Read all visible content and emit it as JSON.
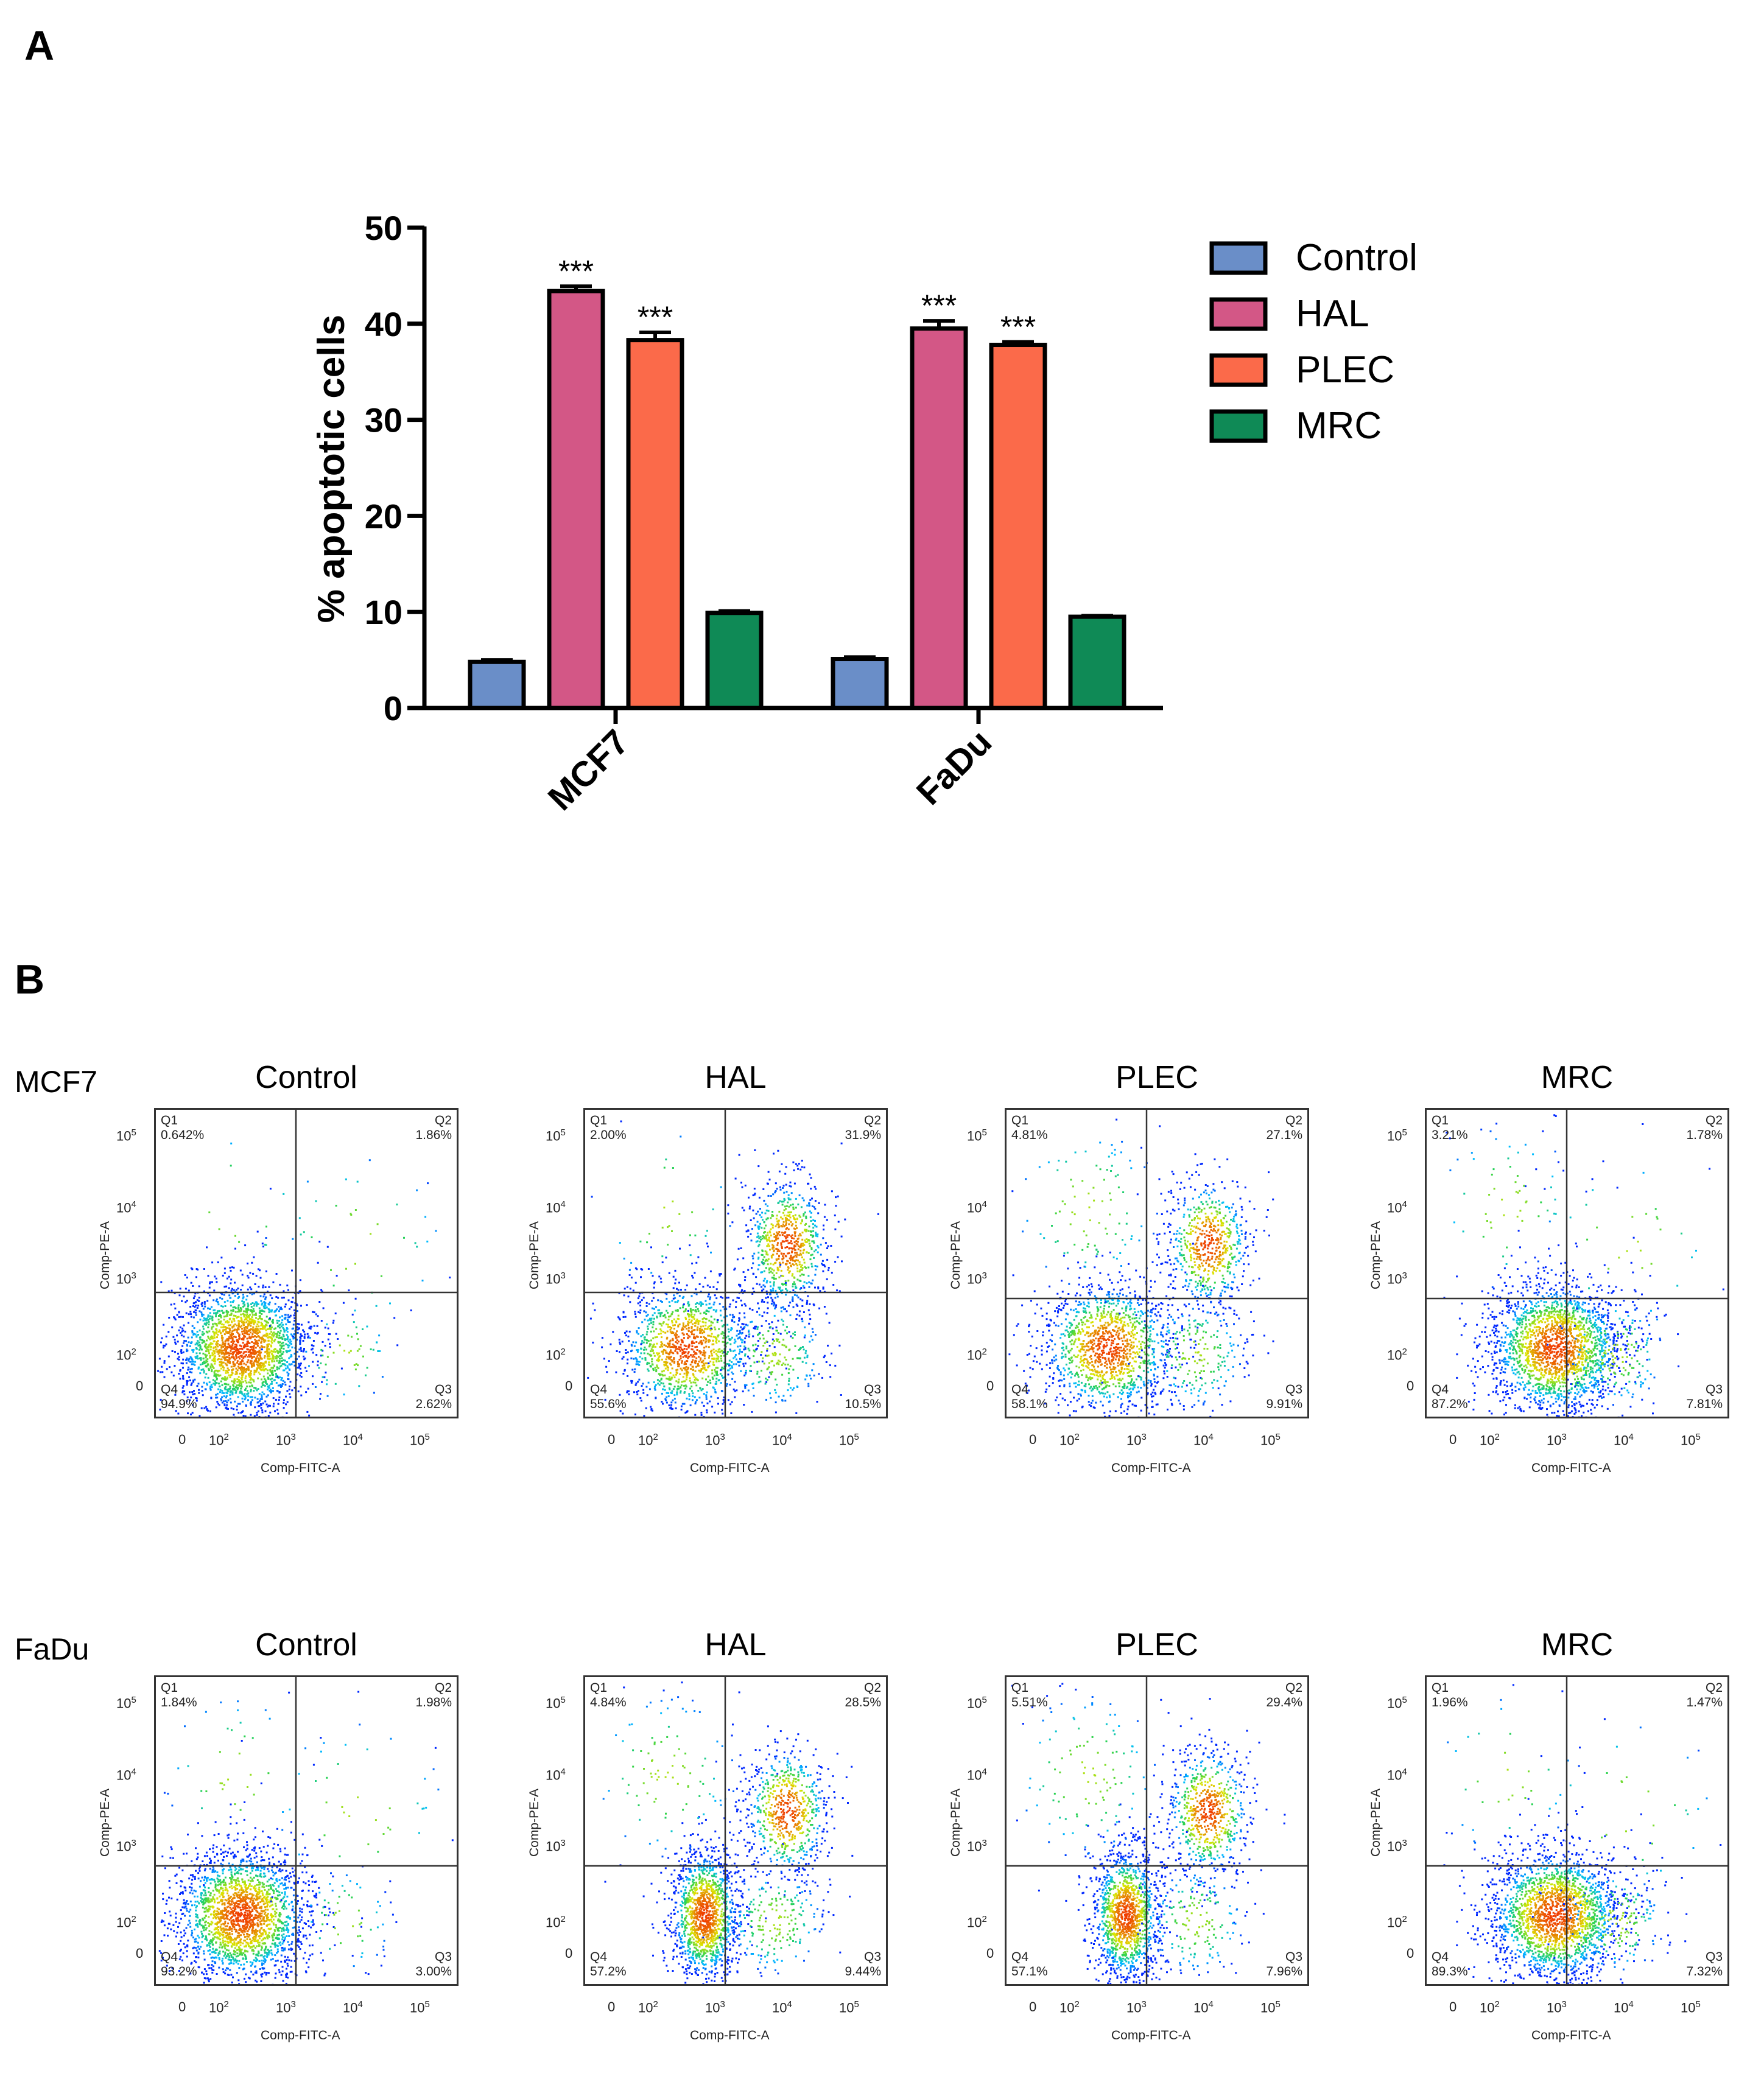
{
  "panel_a_label": "A",
  "panel_b_label": "B",
  "chart_data": {
    "type": "bar",
    "title": "",
    "xlabel": "",
    "ylabel": "% apoptotic cells",
    "ylim": [
      0,
      50
    ],
    "yticks": [
      "0",
      "10",
      "20",
      "30",
      "40",
      "50"
    ],
    "categories": [
      "MCF7",
      "FaDu"
    ],
    "series": [
      {
        "name": "Control",
        "color": "#6a8ec8",
        "values": [
          4.8,
          5.1
        ],
        "errors": [
          0.2,
          0.2
        ],
        "annotations": [
          "",
          ""
        ]
      },
      {
        "name": "HAL",
        "color": "#d35786",
        "values": [
          43.4,
          39.5
        ],
        "errors": [
          0.5,
          0.8
        ],
        "annotations": [
          "***",
          "***"
        ]
      },
      {
        "name": "PLEC",
        "color": "#fb6a4a",
        "values": [
          38.3,
          37.8
        ],
        "errors": [
          0.8,
          0.3
        ],
        "annotations": [
          "***",
          "***"
        ]
      },
      {
        "name": "MRC",
        "color": "#0f8a56",
        "values": [
          9.9,
          9.5
        ],
        "errors": [
          0.2,
          0.1
        ],
        "annotations": [
          "",
          ""
        ]
      }
    ],
    "legend_position": "right"
  },
  "flow": {
    "xlabel": "Comp-FITC-A",
    "ylabel": "Comp-PE-A",
    "tick_zero": "0",
    "tick_base": "10",
    "tick_exps": [
      "2",
      "3",
      "4",
      "5"
    ],
    "quadrant_names": [
      "Q1",
      "Q2",
      "Q3",
      "Q4"
    ],
    "rows": [
      {
        "label": "MCF7",
        "plots": [
          {
            "title": "Control",
            "q1": "0.642%",
            "q2": "1.86%",
            "q3": "2.62%",
            "q4": "94.9%"
          },
          {
            "title": "HAL",
            "q1": "2.00%",
            "q2": "31.9%",
            "q3": "10.5%",
            "q4": "55.6%"
          },
          {
            "title": "PLEC",
            "q1": "4.81%",
            "q2": "27.1%",
            "q3": "9.91%",
            "q4": "58.1%"
          },
          {
            "title": "MRC",
            "q1": "3.21%",
            "q2": "1.78%",
            "q3": "7.81%",
            "q4": "87.2%"
          }
        ]
      },
      {
        "label": "FaDu",
        "plots": [
          {
            "title": "Control",
            "q1": "1.84%",
            "q2": "1.98%",
            "q3": "3.00%",
            "q4": "93.2%"
          },
          {
            "title": "HAL",
            "q1": "4.84%",
            "q2": "28.5%",
            "q3": "9.44%",
            "q4": "57.2%"
          },
          {
            "title": "PLEC",
            "q1": "5.51%",
            "q2": "29.4%",
            "q3": "7.96%",
            "q4": "57.1%"
          },
          {
            "title": "MRC",
            "q1": "1.96%",
            "q2": "1.47%",
            "q3": "7.32%",
            "q4": "89.3%"
          }
        ]
      }
    ]
  }
}
